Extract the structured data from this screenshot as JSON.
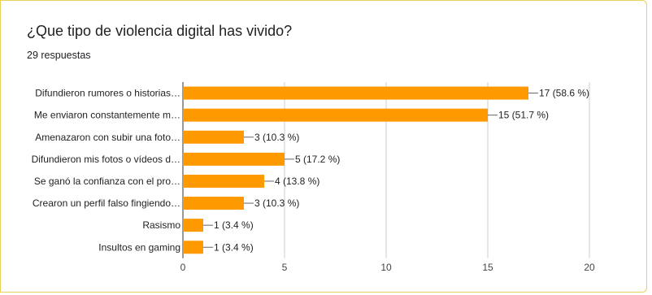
{
  "question": {
    "title": "¿Que tipo de violencia digital has vivido?",
    "responses": "29 respuestas"
  },
  "colors": {
    "bar": "#ff9900",
    "axis": "#333333",
    "grid": "#cccccc",
    "text": "#222222"
  },
  "chart_data": {
    "type": "bar",
    "orientation": "horizontal",
    "categories": [
      "Difundieron rumores o historias…",
      "Me enviaron constantemente m…",
      "Amenazaron con subir una foto…",
      "Difundieron mis fotos o vídeos d…",
      "Se ganó la confianza con el pro…",
      "Crearon un perfil falso fingiendo…",
      "Rasismo",
      "Insultos en gaming"
    ],
    "values": [
      17,
      15,
      3,
      5,
      4,
      3,
      1,
      1
    ],
    "data_labels": [
      "17 (58.6 %)",
      "15 (51.7 %)",
      "3 (10.3 %)",
      "5 (17.2 %)",
      "4 (13.8 %)",
      "3 (10.3 %)",
      "1 (3.4 %)",
      "1 (3.4 %)"
    ],
    "xlim": [
      0,
      20
    ],
    "xticks": [
      0,
      5,
      10,
      15,
      20
    ],
    "xtick_labels": [
      "0",
      "5",
      "10",
      "15",
      "20"
    ],
    "grid": true
  }
}
